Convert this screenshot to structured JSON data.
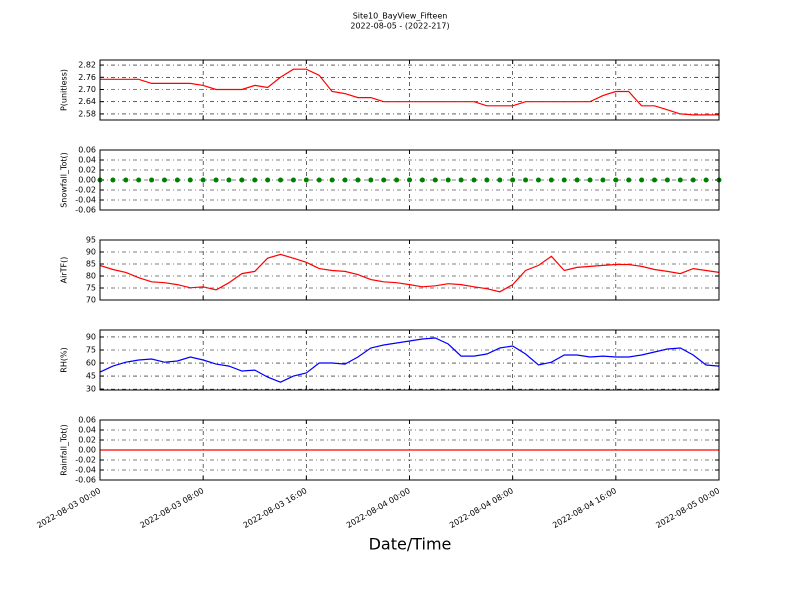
{
  "title": "Site10_BayView_Fifteen",
  "subtitle": "2022-08-05 - (2022-217)",
  "x_label": "Date/Time",
  "x": [
    "2022-08-03 00:00",
    "2022-08-03 01:00",
    "2022-08-03 02:00",
    "2022-08-03 03:00",
    "2022-08-03 04:00",
    "2022-08-03 05:00",
    "2022-08-03 06:00",
    "2022-08-03 07:00",
    "2022-08-03 08:00",
    "2022-08-03 09:00",
    "2022-08-03 10:00",
    "2022-08-03 11:00",
    "2022-08-03 12:00",
    "2022-08-03 13:00",
    "2022-08-03 14:00",
    "2022-08-03 15:00",
    "2022-08-03 16:00",
    "2022-08-03 17:00",
    "2022-08-03 18:00",
    "2022-08-03 19:00",
    "2022-08-03 20:00",
    "2022-08-03 21:00",
    "2022-08-03 22:00",
    "2022-08-03 23:00",
    "2022-08-04 00:00",
    "2022-08-04 01:00",
    "2022-08-04 02:00",
    "2022-08-04 03:00",
    "2022-08-04 04:00",
    "2022-08-04 05:00",
    "2022-08-04 06:00",
    "2022-08-04 07:00",
    "2022-08-04 08:00",
    "2022-08-04 09:00",
    "2022-08-04 10:00",
    "2022-08-04 11:00",
    "2022-08-04 12:00",
    "2022-08-04 13:00",
    "2022-08-04 14:00",
    "2022-08-04 15:00",
    "2022-08-04 16:00",
    "2022-08-04 17:00",
    "2022-08-04 18:00",
    "2022-08-04 19:00",
    "2022-08-04 20:00",
    "2022-08-04 21:00",
    "2022-08-04 22:00",
    "2022-08-04 23:00",
    "2022-08-05 00:00"
  ],
  "xlim": [
    "2022-08-03 00:00",
    "2022-08-05 00:00"
  ],
  "xticks": [
    "2022-08-03 00:00",
    "2022-08-03 08:00",
    "2022-08-03 16:00",
    "2022-08-04 00:00",
    "2022-08-04 08:00",
    "2022-08-04 16:00",
    "2022-08-05 00:00"
  ],
  "chart_data": [
    {
      "type": "line",
      "y_label": "P(unitless)",
      "color": "#ff0000",
      "grid": true,
      "ylim": [
        2.55,
        2.845
      ],
      "yticks": [
        2.58,
        2.64,
        {
          "value": 2.7,
          "label": "2.70"
        },
        2.76,
        2.82
      ],
      "values": [
        2.75,
        2.75,
        2.75,
        2.75,
        2.73,
        2.73,
        2.73,
        2.73,
        2.72,
        2.7,
        2.7,
        2.7,
        2.72,
        2.71,
        2.76,
        2.8,
        2.8,
        2.77,
        2.69,
        2.68,
        2.66,
        2.66,
        2.64,
        2.64,
        2.64,
        2.64,
        2.64,
        2.64,
        2.64,
        2.64,
        2.62,
        2.62,
        2.62,
        2.64,
        2.64,
        2.64,
        2.64,
        2.64,
        2.64,
        2.67,
        2.69,
        2.69,
        2.62,
        2.62,
        2.6,
        2.58,
        2.575,
        2.575,
        2.575
      ]
    },
    {
      "type": "scatter",
      "y_label": "Snowfall_Tot()",
      "color": "#008000",
      "grid": true,
      "ylim": [
        -0.06,
        0.06
      ],
      "yticks": [
        -0.06,
        -0.04,
        -0.02,
        {
          "value": 0,
          "label": "0.00"
        },
        0.02,
        0.04,
        0.06
      ],
      "values": [
        0,
        0,
        0,
        0,
        0,
        0,
        0,
        0,
        0,
        0,
        0,
        0,
        0,
        0,
        0,
        0,
        0,
        0,
        0,
        0,
        0,
        0,
        0,
        0,
        0,
        0,
        0,
        0,
        0,
        0,
        0,
        0,
        0,
        0,
        0,
        0,
        0,
        0,
        0,
        0,
        0,
        0,
        0,
        0,
        0,
        0,
        0,
        0,
        0
      ]
    },
    {
      "type": "line",
      "y_label": "AirTF()",
      "color": "#ff0000",
      "grid": true,
      "ylim": [
        70,
        95
      ],
      "yticks": [
        70,
        75,
        80,
        85,
        90,
        95
      ],
      "values": [
        84.4,
        82.7,
        81.5,
        79.3,
        77.6,
        77.2,
        76.4,
        75.1,
        75.5,
        74.2,
        77.2,
        81,
        81.9,
        87.4,
        89,
        87.4,
        85.7,
        83.1,
        82.3,
        81.9,
        80.6,
        78.5,
        77.6,
        77.2,
        76.4,
        75.5,
        75.9,
        76.8,
        76.4,
        75.5,
        74.7,
        73.4,
        76.4,
        82.3,
        84.4,
        88.2,
        82.3,
        83.6,
        84,
        84.4,
        84.8,
        84.8,
        84,
        82.7,
        81.9,
        81,
        83.1,
        82.3,
        81.5
      ]
    },
    {
      "type": "line",
      "y_label": "RH(%)",
      "color": "#0000ff",
      "grid": true,
      "ylim": [
        29,
        98
      ],
      "yticks": [
        30,
        45,
        60,
        75,
        90
      ],
      "values": [
        49.6,
        56.5,
        61,
        63.5,
        64.6,
        61,
        62.3,
        67,
        63.5,
        58.8,
        56.5,
        50.8,
        51.9,
        43.8,
        38,
        45,
        48.5,
        60,
        60,
        58.8,
        67,
        77.3,
        80.8,
        83,
        85.4,
        87.7,
        88.8,
        81.9,
        68,
        68,
        70.4,
        77.3,
        79.6,
        70.4,
        57.7,
        61,
        69.2,
        69.2,
        67,
        68,
        67,
        67,
        69.2,
        72.7,
        76.2,
        77.3,
        69.2,
        57.7,
        56.5
      ]
    },
    {
      "type": "line",
      "y_label": "Rainfall_Tot()",
      "color": "#ff0000",
      "grid": true,
      "ylim": [
        -0.06,
        0.06
      ],
      "yticks": [
        -0.06,
        -0.04,
        -0.02,
        {
          "value": 0,
          "label": "0.00"
        },
        0.02,
        0.04,
        0.06
      ],
      "values": [
        0,
        0,
        0,
        0,
        0,
        0,
        0,
        0,
        0,
        0,
        0,
        0,
        0,
        0,
        0,
        0,
        0,
        0,
        0,
        0,
        0,
        0,
        0,
        0,
        0,
        0,
        0,
        0,
        0,
        0,
        0,
        0,
        0,
        0,
        0,
        0,
        0,
        0,
        0,
        0,
        0,
        0,
        0,
        0,
        0,
        0,
        0,
        0,
        0
      ]
    }
  ]
}
